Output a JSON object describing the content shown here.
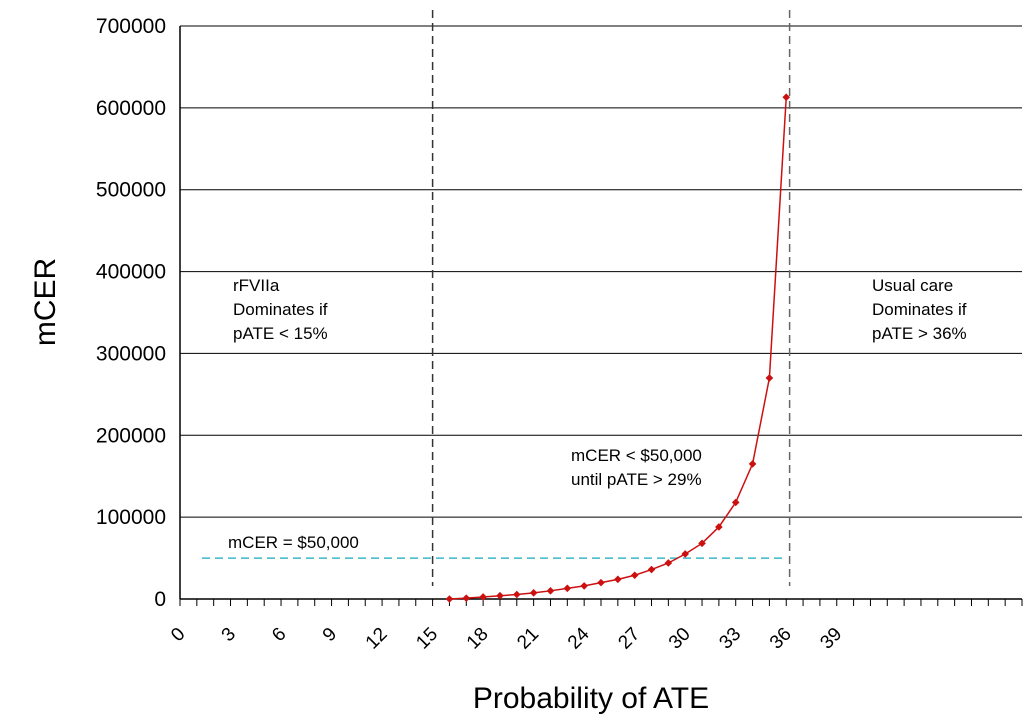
{
  "chart_data": {
    "type": "line",
    "title": "",
    "xlabel": "Probability of ATE",
    "ylabel": "mCER",
    "xlim": [
      0,
      50
    ],
    "ylim": [
      0,
      700000
    ],
    "yticks": [
      0,
      100000,
      200000,
      300000,
      400000,
      500000,
      600000,
      700000
    ],
    "ytick_labels": [
      "0",
      "100000",
      "200000",
      "300000",
      "400000",
      "500000",
      "600000",
      "700000"
    ],
    "xticks_labeled": [
      0,
      3,
      6,
      9,
      12,
      15,
      18,
      21,
      24,
      27,
      30,
      33,
      36,
      39
    ],
    "xtick_labels": [
      "0",
      "3",
      "6",
      "9",
      "12",
      "15",
      "18",
      "21",
      "24",
      "27",
      "30",
      "33",
      "36",
      "39"
    ],
    "grid": "horizontal",
    "series": [
      {
        "color": "#cc1010",
        "marker": "diamond",
        "x": [
          16,
          17,
          18,
          19,
          20,
          21,
          22,
          23,
          24,
          25,
          26,
          27,
          28,
          29,
          30,
          31,
          32,
          33,
          34,
          35,
          36
        ],
        "y": [
          0,
          1000,
          2500,
          4000,
          5500,
          7500,
          10000,
          13000,
          16000,
          20000,
          24000,
          29000,
          36000,
          44000,
          55000,
          68000,
          88000,
          118000,
          165000,
          270000,
          613000
        ]
      }
    ],
    "reference_lines": [
      {
        "orientation": "vertical",
        "x": 15,
        "style": "dashed",
        "color": "#333333"
      },
      {
        "orientation": "vertical",
        "x": 36.2,
        "style": "dashed",
        "color": "#666666"
      },
      {
        "orientation": "horizontal",
        "y": 50000,
        "x_range": [
          0,
          36
        ],
        "style": "dashed",
        "color": "#3ab8c8"
      }
    ],
    "annotations": [
      {
        "lines": [
          "rFVIIa",
          "Dominates if",
          "pATE < 15%"
        ]
      },
      {
        "lines": [
          "Usual care",
          "Dominates if",
          "pATE > 36%"
        ]
      },
      {
        "lines": [
          "mCER < $50,000",
          "until pATE > 29%"
        ]
      },
      {
        "lines": [
          "mCER = $50,000"
        ]
      }
    ]
  }
}
